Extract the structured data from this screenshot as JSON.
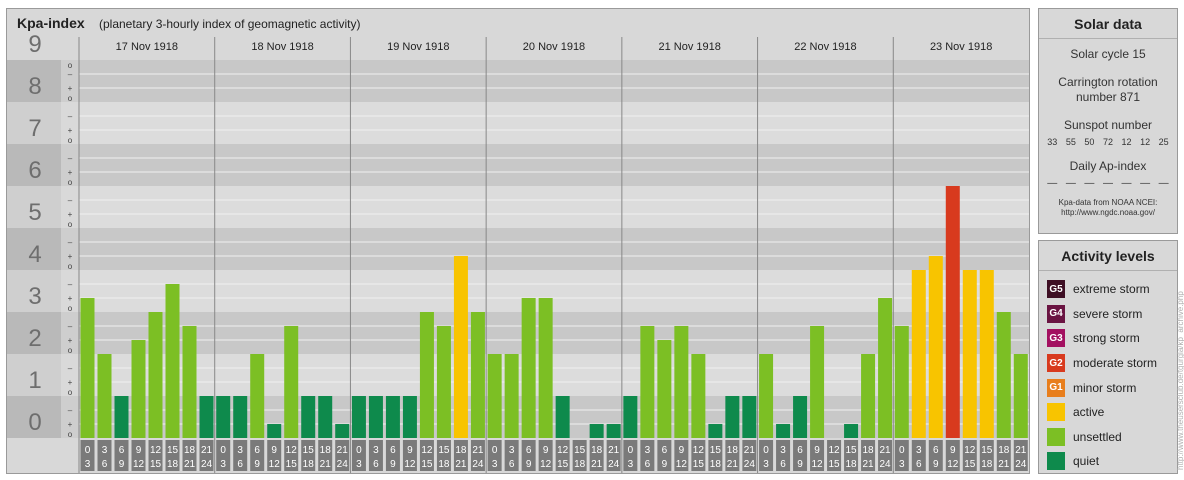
{
  "title": "Kpa-index",
  "subtitle": "(planetary 3-hourly index of geomagnetic activity)",
  "chart_data": {
    "type": "bar",
    "title": "Kpa-index",
    "subtitle": "(planetary 3-hourly index of geomagnetic activity)",
    "y_ticks": [
      "0",
      "1",
      "2",
      "3",
      "4",
      "5",
      "6",
      "7",
      "8",
      "9"
    ],
    "ylim": [
      0,
      9
    ],
    "minor_tick_labels": [
      "o",
      "+",
      "–"
    ],
    "days": [
      "17 Nov 1918",
      "18 Nov 1918",
      "19 Nov 1918",
      "20 Nov 1918",
      "21 Nov 1918",
      "22 Nov 1918",
      "23 Nov 1918"
    ],
    "hour_ticks": [
      {
        "top": "0",
        "bottom": "3"
      },
      {
        "top": "3",
        "bottom": "6"
      },
      {
        "top": "6",
        "bottom": "9"
      },
      {
        "top": "9",
        "bottom": "12"
      },
      {
        "top": "12",
        "bottom": "15"
      },
      {
        "top": "15",
        "bottom": "18"
      },
      {
        "top": "18",
        "bottom": "21"
      },
      {
        "top": "21",
        "bottom": "24"
      }
    ],
    "values": [
      3.333,
      2,
      1,
      2.333,
      3,
      3.667,
      2.667,
      1,
      1,
      1,
      2,
      0.333,
      2.667,
      1,
      1,
      0.333,
      1,
      1,
      1,
      1,
      3,
      2.667,
      4.333,
      3,
      2,
      2,
      3.333,
      3.333,
      1,
      0,
      0.333,
      0.333,
      1,
      2.667,
      2.333,
      2.667,
      2,
      0.333,
      1,
      1,
      2,
      0.333,
      1,
      2.667,
      0,
      0.333,
      2,
      3.333,
      2.667,
      4,
      4.333,
      6,
      4,
      4,
      3,
      2
    ],
    "grid": true,
    "legend_placement": "right",
    "colors": {
      "quiet": "#0e8a4c",
      "unsettled": "#7cbf24",
      "active": "#f8c400",
      "minor": "#e87e1c",
      "moderate": "#d83a1e",
      "strong": "#a31060",
      "severe": "#6a1442",
      "extreme": "#3e0f24"
    }
  },
  "solar": {
    "title": "Solar data",
    "cycle": "Solar cycle 15",
    "carrington": "Carrington rotation number 871",
    "sunspot_label": "Sunspot number",
    "sunspot_values": [
      "33",
      "55",
      "50",
      "72",
      "12",
      "12",
      "25"
    ],
    "ap_label": "Daily Ap-index",
    "ap_values": [
      "—",
      "—",
      "—",
      "—",
      "—",
      "—",
      "—"
    ],
    "source": "Kpa-data from NOAA NCEI:",
    "source_url": "http://www.ngdc.noaa.gov/"
  },
  "levels": {
    "title": "Activity levels",
    "items": [
      {
        "badge": "G5",
        "label": "extreme storm",
        "color": "#3e0f24"
      },
      {
        "badge": "G4",
        "label": "severe storm",
        "color": "#6a1442"
      },
      {
        "badge": "G3",
        "label": "strong storm",
        "color": "#a31060"
      },
      {
        "badge": "G2",
        "label": "moderate storm",
        "color": "#d83a1e"
      },
      {
        "badge": "G1",
        "label": "minor storm",
        "color": "#e87e1c"
      },
      {
        "badge": "",
        "label": "active",
        "color": "#f8c400"
      },
      {
        "badge": "",
        "label": "unsettled",
        "color": "#7cbf24"
      },
      {
        "badge": "",
        "label": "quiet",
        "color": "#0e8a4c"
      }
    ]
  },
  "watermark": "http://www.theusersclub.de/tgurgla/kp_archive.php"
}
